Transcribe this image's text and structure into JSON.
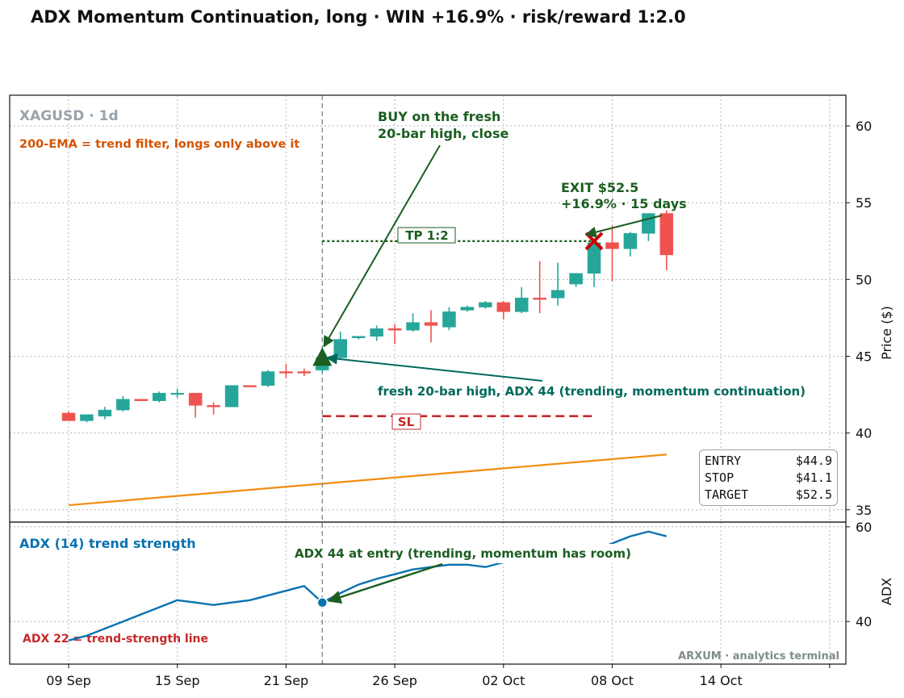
{
  "title": "ADX Momentum Continuation, long · WIN +16.9% · risk/reward 1:2.0",
  "colors": {
    "bull": "#26a69a",
    "bear": "#ef5350",
    "ema": "#f28c0f",
    "adx": "#0a72b0",
    "entry_marker": "#1b5e20",
    "stop": "#c62828",
    "target": "#1b5e20",
    "exit_marker": "#cc0000",
    "vline": "#7f8c8d",
    "grid": "#b5b5b5"
  },
  "labels": {
    "symbol": "XAGUSD · 1d",
    "ema_note": "200-EMA = trend filter, longs only above it",
    "buy_note_line1": "BUY on the fresh",
    "buy_note_line2": "20-bar high, close",
    "exit_line1": "EXIT $52.5",
    "exit_line2": "+16.9%  ·  15 days",
    "tp": "TP 1:2",
    "sl": "SL",
    "signal_note": "fresh 20-bar high, ADX 44 (trending, momentum continuation)",
    "adx_title": "ADX (14) trend strength",
    "adx_entry_note": "ADX 44 at entry (trending, momentum has room)",
    "adx_threshold": "ADX 22 = trend-strength line",
    "watermark": "ARXUM · analytics terminal"
  },
  "trade_table": [
    {
      "key": "ENTRY",
      "value": "$44.9"
    },
    {
      "key": "STOP",
      "value": "$41.1"
    },
    {
      "key": "TARGET",
      "value": "$52.5"
    }
  ],
  "chart_data": {
    "type": "candlestick",
    "x_ticks": [
      "09 Sep",
      "15 Sep",
      "21 Sep",
      "26 Sep",
      "02 Oct",
      "08 Oct",
      "14 Oct"
    ],
    "x_tick_index": [
      0,
      6,
      12,
      18,
      24,
      30,
      36
    ],
    "price_axis": {
      "label": "Price ($)",
      "ylim": [
        34.2,
        62
      ],
      "ticks": [
        35,
        40,
        45,
        50,
        55,
        60
      ]
    },
    "adx_axis": {
      "label": "ADX",
      "ylim": [
        31,
        61
      ],
      "ticks": [
        40,
        60
      ]
    },
    "grid": true,
    "candles": [
      {
        "o": 41.3,
        "h": 41.4,
        "l": 40.8,
        "c": 40.8
      },
      {
        "o": 40.8,
        "h": 41.2,
        "l": 40.7,
        "c": 41.2
      },
      {
        "o": 41.1,
        "h": 41.7,
        "l": 40.9,
        "c": 41.5
      },
      {
        "o": 41.5,
        "h": 42.4,
        "l": 41.4,
        "c": 42.2
      },
      {
        "o": 42.2,
        "h": 42.2,
        "l": 42.1,
        "c": 42.1
      },
      {
        "o": 42.1,
        "h": 42.7,
        "l": 42.0,
        "c": 42.6
      },
      {
        "o": 42.6,
        "h": 42.9,
        "l": 42.3,
        "c": 42.6
      },
      {
        "o": 42.6,
        "h": 42.6,
        "l": 41.0,
        "c": 41.8
      },
      {
        "o": 41.8,
        "h": 42.0,
        "l": 41.2,
        "c": 41.7
      },
      {
        "o": 41.7,
        "h": 43.1,
        "l": 41.7,
        "c": 43.1
      },
      {
        "o": 43.1,
        "h": 43.1,
        "l": 43.0,
        "c": 43.0
      },
      {
        "o": 43.1,
        "h": 44.1,
        "l": 43.0,
        "c": 44.0
      },
      {
        "o": 44.0,
        "h": 44.5,
        "l": 43.6,
        "c": 43.9
      },
      {
        "o": 44.0,
        "h": 44.2,
        "l": 43.7,
        "c": 43.9
      },
      {
        "o": 44.1,
        "h": 45.1,
        "l": 43.9,
        "c": 44.9
      },
      {
        "o": 44.9,
        "h": 46.6,
        "l": 44.8,
        "c": 46.1
      },
      {
        "o": 46.2,
        "h": 46.3,
        "l": 46.1,
        "c": 46.3
      },
      {
        "o": 46.3,
        "h": 47.0,
        "l": 46.0,
        "c": 46.8
      },
      {
        "o": 46.8,
        "h": 47.1,
        "l": 45.8,
        "c": 46.7
      },
      {
        "o": 46.7,
        "h": 47.8,
        "l": 46.6,
        "c": 47.2
      },
      {
        "o": 47.2,
        "h": 48.0,
        "l": 45.9,
        "c": 47.0
      },
      {
        "o": 46.9,
        "h": 48.2,
        "l": 46.7,
        "c": 47.9
      },
      {
        "o": 48.0,
        "h": 48.3,
        "l": 47.9,
        "c": 48.2
      },
      {
        "o": 48.2,
        "h": 48.6,
        "l": 48.1,
        "c": 48.5
      },
      {
        "o": 48.5,
        "h": 48.6,
        "l": 47.4,
        "c": 47.9
      },
      {
        "o": 47.9,
        "h": 49.5,
        "l": 47.8,
        "c": 48.8
      },
      {
        "o": 48.8,
        "h": 51.2,
        "l": 47.8,
        "c": 48.7
      },
      {
        "o": 48.8,
        "h": 51.1,
        "l": 48.3,
        "c": 49.3
      },
      {
        "o": 49.7,
        "h": 50.4,
        "l": 49.5,
        "c": 50.4
      },
      {
        "o": 50.4,
        "h": 52.5,
        "l": 49.5,
        "c": 52.4
      },
      {
        "o": 52.4,
        "h": 53.5,
        "l": 49.9,
        "c": 52.0
      },
      {
        "o": 52.0,
        "h": 53.1,
        "l": 51.5,
        "c": 53.0
      },
      {
        "o": 53.0,
        "h": 54.3,
        "l": 52.5,
        "c": 54.3
      },
      {
        "o": 54.3,
        "h": 54.5,
        "l": 50.6,
        "c": 51.6
      }
    ],
    "ema200": {
      "first_index": 0,
      "first_value": 35.3,
      "last_index": 33,
      "last_value": 38.6
    },
    "entry": {
      "index": 14,
      "price": 44.9
    },
    "exit": {
      "index": 29,
      "price": 52.5
    },
    "stop": {
      "price": 41.1,
      "from_index": 14,
      "to_index": 29
    },
    "target": {
      "price": 52.5,
      "from_index": 14,
      "to_index": 29
    },
    "adx": {
      "x": [
        0,
        1,
        2,
        3,
        4,
        5,
        6,
        7,
        8,
        9,
        10,
        11,
        12,
        13,
        14,
        15,
        16,
        17,
        18,
        19,
        20,
        21,
        22,
        23,
        24,
        25,
        26,
        27,
        28,
        29,
        30,
        31,
        32,
        33
      ],
      "values": [
        36,
        37,
        38.5,
        40,
        41.5,
        43,
        44.5,
        44,
        43.5,
        44,
        44.5,
        45.5,
        46.5,
        47.5,
        44,
        46,
        47.8,
        49,
        50,
        51,
        51.5,
        52,
        52,
        51.5,
        52.5,
        53,
        53.2,
        53.5,
        54,
        55,
        56.5,
        58,
        59,
        58
      ]
    },
    "adx_threshold": {
      "value": 22,
      "to_index": 25
    },
    "adx_entry": {
      "index": 14,
      "value": 44
    }
  }
}
